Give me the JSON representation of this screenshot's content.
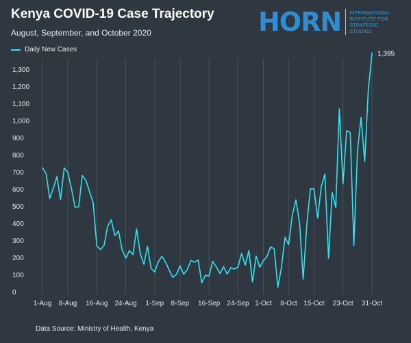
{
  "header": {
    "title": "Kenya COVID-19 Case Trajectory",
    "subtitle": "August, September, and October 2020"
  },
  "logo": {
    "word": "HORN",
    "lines": [
      "INTERNATIONAL",
      "INSTITUTE FOR",
      "STRATEGIC",
      "STUDIES"
    ],
    "color": "#2f8ecf"
  },
  "footer": {
    "source": "Data Source: Ministry of Health, Kenya"
  },
  "colors": {
    "background": "#2f3741",
    "line": "#2ee6f0",
    "grid": "#4a535d"
  },
  "chart_data": {
    "type": "line",
    "title": "Kenya COVID-19 Case Trajectory",
    "subtitle": "August, September, and October 2020",
    "xlabel": "",
    "ylabel": "",
    "ylim": [
      0,
      1400
    ],
    "yticks": [
      0,
      100,
      200,
      300,
      400,
      500,
      600,
      700,
      800,
      900,
      1000,
      1100,
      1200,
      1300
    ],
    "ytick_labels": [
      "0",
      "100",
      "200",
      "300",
      "400",
      "500",
      "600",
      "700",
      "800",
      "900",
      "1,000",
      "1,100",
      "1,200",
      "1,300"
    ],
    "xticks": [
      "1-Aug",
      "8-Aug",
      "16-Aug",
      "24-Aug",
      "1-Sep",
      "8-Sep",
      "16-Sep",
      "24-Sep",
      "1-Oct",
      "8-Oct",
      "15-Oct",
      "23-Oct",
      "31-Oct"
    ],
    "xtick_day_index": [
      0,
      7,
      15,
      23,
      31,
      38,
      46,
      54,
      61,
      68,
      75,
      83,
      91
    ],
    "grid": "vertical",
    "legend": "top-left",
    "series": [
      {
        "name": "Daily New Cases",
        "color": "#2ee6f0",
        "values": [
          724,
          690,
          544,
          605,
          672,
          538,
          723,
          697,
          603,
          492,
          496,
          679,
          650,
          585,
          520,
          268,
          246,
          270,
          381,
          420,
          328,
          355,
          245,
          196,
          240,
          216,
          367,
          225,
          160,
          265,
          135,
          115,
          175,
          207,
          172,
          126,
          83,
          102,
          150,
          102,
          129,
          182,
          172,
          185,
          52,
          96,
          91,
          177,
          146,
          106,
          146,
          103,
          140,
          132,
          144,
          223,
          155,
          240,
          56,
          209,
          143,
          181,
          205,
          261,
          250,
          26,
          143,
          318,
          275,
          447,
          536,
          402,
          73,
          391,
          600,
          601,
          430,
          613,
          687,
          194,
          580,
          492,
          1068,
          630,
          940,
          930,
          270,
          825,
          1018,
          760,
          1180,
          1395
        ]
      }
    ],
    "annotations": [
      {
        "text": "1,395",
        "x_index": 91,
        "y": 1395
      }
    ]
  }
}
